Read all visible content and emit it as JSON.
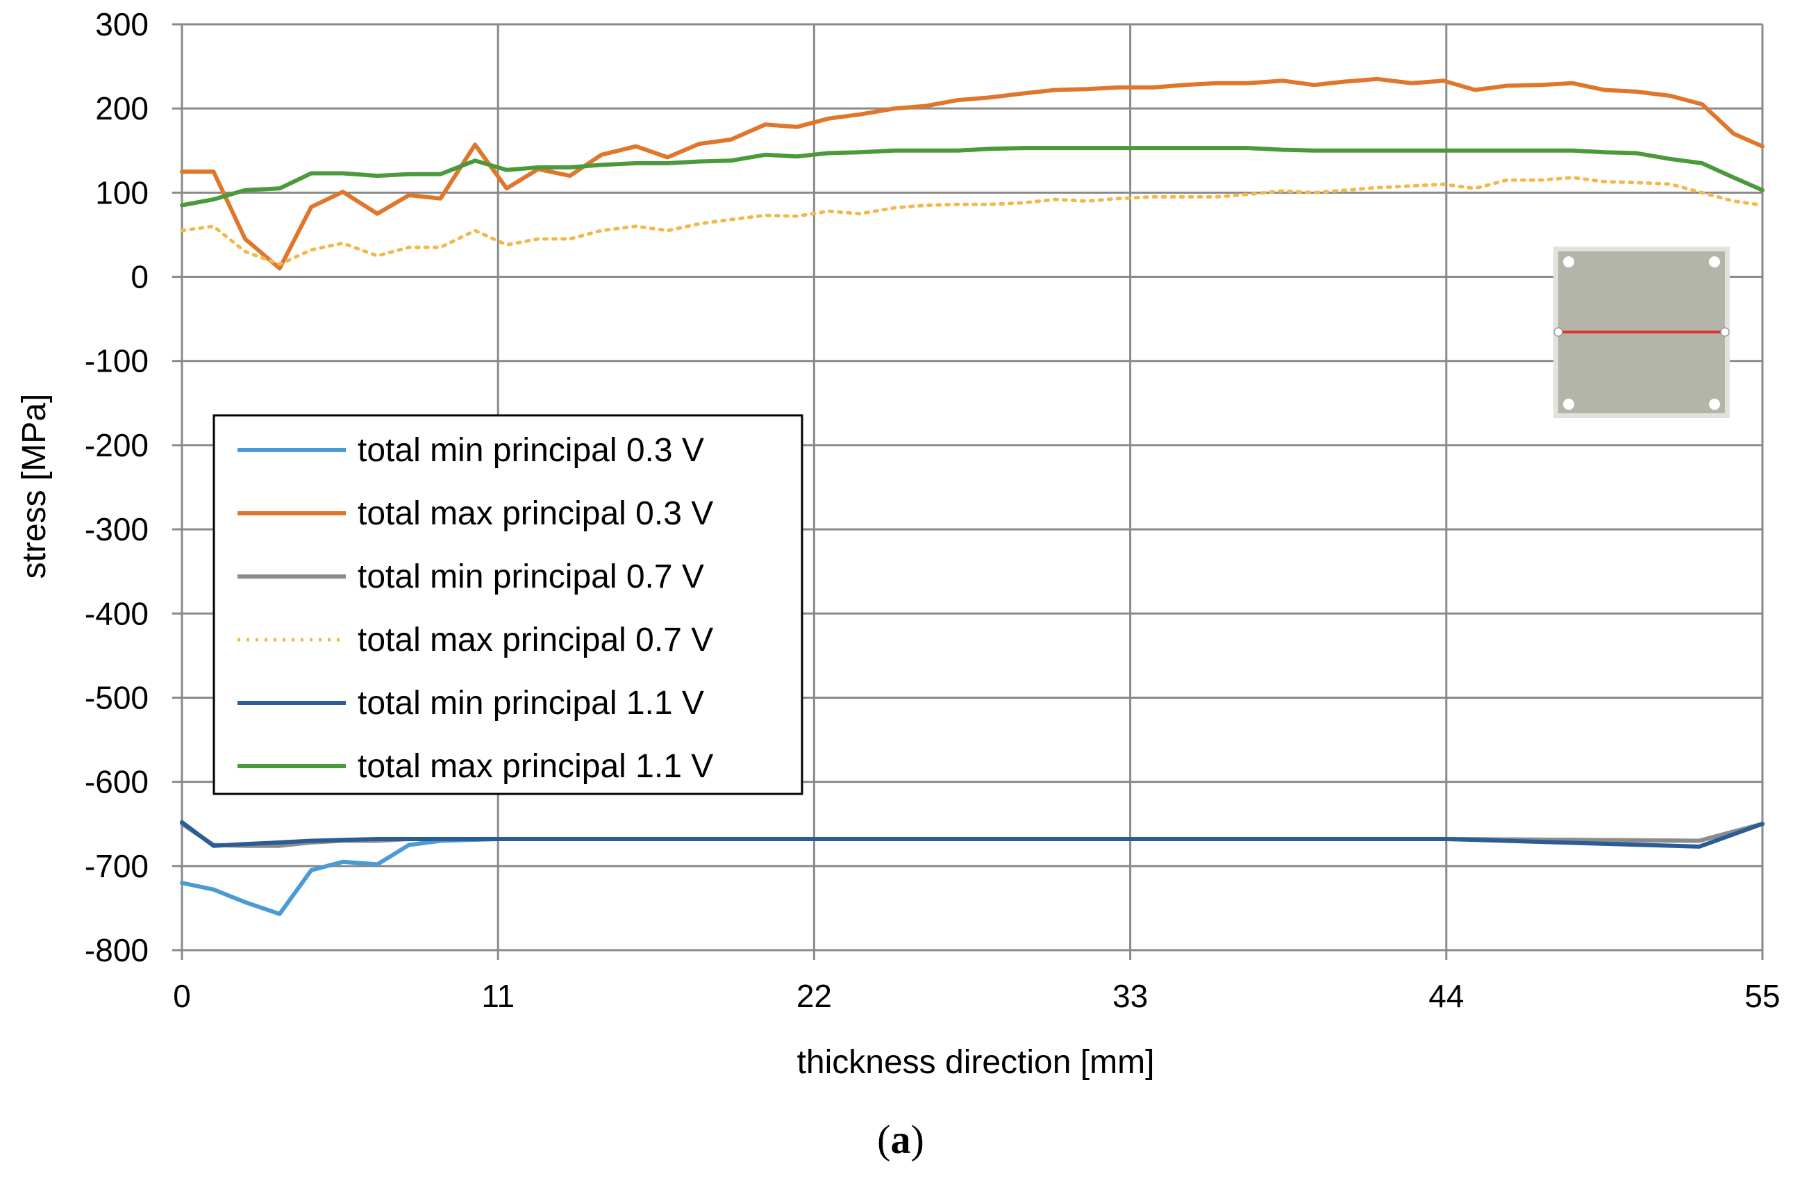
{
  "chart_data": {
    "type": "line",
    "title": "",
    "xlabel": "thickness direction [mm]",
    "ylabel": "stress [MPa]",
    "xlim": [
      0,
      55
    ],
    "ylim": [
      -800,
      300
    ],
    "xticks": [
      0,
      11,
      22,
      33,
      44,
      55
    ],
    "xtick_labels": [
      "0",
      "11",
      "22",
      "33",
      "44",
      "55"
    ],
    "yticks": [
      300,
      200,
      100,
      0,
      -100,
      -200,
      -300,
      -400,
      -500,
      -600,
      -700,
      -800
    ],
    "ytick_labels": [
      "300",
      "200",
      "100",
      "0",
      "-100",
      "-200",
      "-300",
      "-400",
      "-500",
      "-600",
      "-700",
      "-800"
    ],
    "grid": true,
    "legend_position": "left-middle",
    "caption_open": "(",
    "caption_letter": "a",
    "caption_close": ")",
    "series": [
      {
        "name": "total min principal 0.3 V",
        "color": "#4a9bd4",
        "style": "solid",
        "x": [
          0,
          1.1,
          2.2,
          3.4,
          4.5,
          5.6,
          6.8,
          7.9,
          9.0,
          11,
          22,
          33,
          44,
          52.8,
          55
        ],
        "y": [
          -720,
          -728,
          -743,
          -757,
          -705,
          -695,
          -698,
          -675,
          -670,
          -668,
          -668,
          -668,
          -668,
          -670,
          -650
        ]
      },
      {
        "name": "total max principal 0.3 V",
        "color": "#e0762c",
        "style": "solid",
        "x": [
          0,
          1.1,
          2.2,
          3.4,
          4.5,
          5.6,
          6.8,
          7.9,
          9.0,
          10.2,
          11.3,
          12.4,
          13.5,
          14.6,
          15.8,
          16.9,
          18.0,
          19.1,
          20.3,
          21.4,
          22.5,
          23.6,
          24.8,
          25.9,
          27.0,
          28.1,
          29.3,
          30.4,
          31.5,
          32.6,
          33.8,
          34.9,
          36.0,
          37.1,
          38.3,
          39.4,
          40.5,
          41.6,
          42.8,
          43.9,
          45.0,
          46.1,
          47.3,
          48.4,
          49.5,
          50.6,
          51.8,
          52.9,
          54.0,
          55.0
        ],
        "y": [
          125,
          125,
          45,
          10,
          83,
          101,
          75,
          97,
          93,
          157,
          105,
          128,
          120,
          145,
          155,
          142,
          158,
          163,
          181,
          178,
          188,
          193,
          200,
          203,
          210,
          213,
          218,
          222,
          223,
          225,
          225,
          228,
          230,
          230,
          233,
          228,
          232,
          235,
          230,
          233,
          222,
          227,
          228,
          230,
          222,
          220,
          215,
          205,
          170,
          155
        ]
      },
      {
        "name": "total min principal 0.7 V",
        "color": "#8c8c8c",
        "style": "solid",
        "x": [
          0,
          1.1,
          2.2,
          3.4,
          4.5,
          5.6,
          6.8,
          7.9,
          9.0,
          11,
          22,
          33,
          44,
          52.8,
          55
        ],
        "y": [
          -650,
          -675,
          -676,
          -676,
          -672,
          -670,
          -670,
          -668,
          -668,
          -668,
          -668,
          -668,
          -668,
          -670,
          -650
        ]
      },
      {
        "name": "total max principal 0.7 V",
        "color": "#f2b84a",
        "style": "dotted",
        "x": [
          0,
          1.1,
          2.2,
          3.4,
          4.5,
          5.6,
          6.8,
          7.9,
          9.0,
          10.2,
          11.3,
          12.4,
          13.5,
          14.6,
          15.8,
          16.9,
          18.0,
          19.1,
          20.3,
          21.4,
          22.5,
          23.6,
          24.8,
          25.9,
          27.0,
          28.1,
          29.3,
          30.4,
          31.5,
          32.6,
          33.8,
          34.9,
          36.0,
          37.1,
          38.3,
          39.4,
          40.5,
          41.6,
          42.8,
          43.9,
          45.0,
          46.1,
          47.3,
          48.4,
          49.5,
          50.6,
          51.8,
          52.9,
          54.0,
          55.0
        ],
        "y": [
          55,
          60,
          30,
          15,
          32,
          40,
          25,
          35,
          35,
          55,
          38,
          45,
          45,
          55,
          60,
          55,
          63,
          68,
          73,
          72,
          78,
          75,
          82,
          85,
          86,
          86,
          88,
          92,
          90,
          93,
          95,
          95,
          95,
          98,
          102,
          100,
          103,
          106,
          108,
          110,
          105,
          115,
          115,
          118,
          113,
          112,
          110,
          100,
          90,
          85
        ]
      },
      {
        "name": "total min principal 1.1 V",
        "color": "#2a5d96",
        "style": "solid",
        "x": [
          0,
          1.1,
          2.2,
          3.4,
          4.5,
          5.6,
          6.8,
          7.9,
          9.0,
          11,
          22,
          33,
          44,
          52.8,
          55
        ],
        "y": [
          -648,
          -676,
          -674,
          -672,
          -670,
          -669,
          -668,
          -668,
          -668,
          -668,
          -668,
          -668,
          -668,
          -677,
          -650
        ]
      },
      {
        "name": "total max principal 1.1 V",
        "color": "#4a9a3c",
        "style": "solid",
        "x": [
          0,
          1.1,
          2.2,
          3.4,
          4.5,
          5.6,
          6.8,
          7.9,
          9.0,
          10.2,
          11.3,
          12.4,
          13.5,
          14.6,
          15.8,
          16.9,
          18.0,
          19.1,
          20.3,
          21.4,
          22.5,
          23.6,
          24.8,
          25.9,
          27.0,
          28.1,
          29.3,
          30.4,
          31.5,
          32.6,
          33.8,
          34.9,
          36.0,
          37.1,
          38.3,
          39.4,
          40.5,
          41.6,
          42.8,
          43.9,
          45.0,
          46.1,
          47.3,
          48.4,
          49.5,
          50.6,
          51.8,
          52.9,
          54.0,
          55.0
        ],
        "y": [
          85,
          92,
          103,
          105,
          123,
          123,
          120,
          122,
          122,
          138,
          127,
          130,
          130,
          133,
          135,
          135,
          137,
          138,
          145,
          143,
          147,
          148,
          150,
          150,
          150,
          152,
          153,
          153,
          153,
          153,
          153,
          153,
          153,
          153,
          151,
          150,
          150,
          150,
          150,
          150,
          150,
          150,
          150,
          150,
          148,
          147,
          140,
          135,
          118,
          103
        ]
      }
    ]
  }
}
